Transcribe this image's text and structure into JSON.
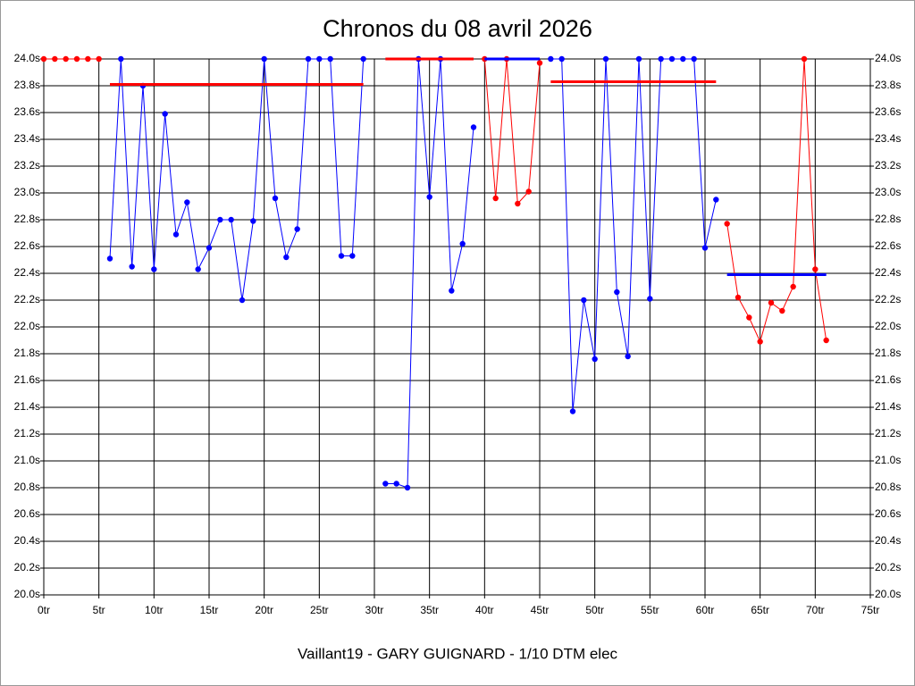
{
  "chart_data": {
    "type": "line",
    "title": "Chronos du 08 avril 2026",
    "x_label": "Vaillant19 - GARY GUIGNARD - 1/10 DTM elec",
    "xlim": [
      0,
      75
    ],
    "ylim": [
      20.0,
      24.0
    ],
    "grid": true,
    "xticks": [
      {
        "value": 0,
        "label": "0tr"
      },
      {
        "value": 5,
        "label": "5tr"
      },
      {
        "value": 10,
        "label": "10tr"
      },
      {
        "value": 15,
        "label": "15tr"
      },
      {
        "value": 20,
        "label": "20tr"
      },
      {
        "value": 25,
        "label": "25tr"
      },
      {
        "value": 30,
        "label": "30tr"
      },
      {
        "value": 35,
        "label": "35tr"
      },
      {
        "value": 40,
        "label": "40tr"
      },
      {
        "value": 45,
        "label": "45tr"
      },
      {
        "value": 50,
        "label": "50tr"
      },
      {
        "value": 55,
        "label": "55tr"
      },
      {
        "value": 60,
        "label": "60tr"
      },
      {
        "value": 65,
        "label": "65tr"
      },
      {
        "value": 70,
        "label": "70tr"
      },
      {
        "value": 75,
        "label": "75tr"
      }
    ],
    "yticks": [
      {
        "value": 20.0,
        "label": "20.0s"
      },
      {
        "value": 20.2,
        "label": "20.2s"
      },
      {
        "value": 20.4,
        "label": "20.4s"
      },
      {
        "value": 20.6,
        "label": "20.6s"
      },
      {
        "value": 20.8,
        "label": "20.8s"
      },
      {
        "value": 21.0,
        "label": "21.0s"
      },
      {
        "value": 21.2,
        "label": "21.2s"
      },
      {
        "value": 21.4,
        "label": "21.4s"
      },
      {
        "value": 21.6,
        "label": "21.6s"
      },
      {
        "value": 21.8,
        "label": "21.8s"
      },
      {
        "value": 22.0,
        "label": "22.0s"
      },
      {
        "value": 22.2,
        "label": "22.2s"
      },
      {
        "value": 22.4,
        "label": "22.4s"
      },
      {
        "value": 22.6,
        "label": "22.6s"
      },
      {
        "value": 22.8,
        "label": "22.8s"
      },
      {
        "value": 23.0,
        "label": "23.0s"
      },
      {
        "value": 23.2,
        "label": "23.2s"
      },
      {
        "value": 23.4,
        "label": "23.4s"
      },
      {
        "value": 23.6,
        "label": "23.6s"
      },
      {
        "value": 23.8,
        "label": "23.8s"
      },
      {
        "value": 24.0,
        "label": "24.0s"
      }
    ],
    "series": [
      {
        "color": "#ff0000",
        "markers": true,
        "x": [
          0,
          1,
          2,
          3,
          4,
          5
        ],
        "values": [
          24.0,
          24.0,
          24.0,
          24.0,
          24.0,
          24.0
        ]
      },
      {
        "color": "#0000ff",
        "markers": true,
        "x": [
          6,
          7,
          8,
          9,
          10,
          11,
          12,
          13,
          14,
          15,
          16,
          17,
          18,
          19,
          20,
          21,
          22,
          23,
          24,
          25,
          26,
          27,
          28,
          29
        ],
        "values": [
          22.51,
          24.0,
          22.45,
          23.8,
          22.43,
          23.59,
          22.69,
          22.93,
          22.43,
          22.59,
          22.8,
          22.8,
          22.2,
          22.79,
          24.0,
          22.96,
          22.52,
          22.73,
          24.0,
          24.0,
          24.0,
          22.53,
          22.53,
          24.0
        ]
      },
      {
        "color": "#0000ff",
        "markers": true,
        "x": [
          31,
          32,
          33,
          34,
          35,
          36,
          37,
          38,
          39
        ],
        "values": [
          20.83,
          20.83,
          20.8,
          24.0,
          22.97,
          24.0,
          22.27,
          22.62,
          23.49
        ]
      },
      {
        "color": "#ff0000",
        "markers": true,
        "x": [
          40,
          41,
          42,
          43,
          44,
          45
        ],
        "values": [
          24.0,
          22.96,
          24.0,
          22.92,
          23.01,
          23.97
        ]
      },
      {
        "color": "#0000ff",
        "markers": true,
        "x": [
          46,
          47,
          48,
          49,
          50,
          51,
          52,
          53,
          54,
          55,
          56,
          57,
          58,
          59,
          60,
          61
        ],
        "values": [
          24.0,
          24.0,
          21.37,
          22.2,
          21.76,
          24.0,
          22.26,
          21.78,
          24.0,
          22.21,
          24.0,
          24.0,
          24.0,
          24.0,
          22.59,
          22.95
        ]
      },
      {
        "color": "#ff0000",
        "markers": true,
        "x": [
          62,
          63,
          64,
          65,
          66,
          67,
          68,
          69,
          70,
          71
        ],
        "values": [
          22.77,
          22.22,
          22.07,
          21.89,
          22.18,
          22.12,
          22.3,
          24.0,
          22.43,
          21.9
        ]
      },
      {
        "color": "#ff0000",
        "markers": false,
        "x": [
          6,
          29
        ],
        "values": [
          23.81,
          23.81
        ]
      },
      {
        "color": "#ff0000",
        "markers": false,
        "x": [
          31,
          39
        ],
        "values": [
          24.0,
          24.0
        ]
      },
      {
        "color": "#0000ff",
        "markers": false,
        "x": [
          40,
          45
        ],
        "values": [
          24.0,
          24.0
        ]
      },
      {
        "color": "#ff0000",
        "markers": false,
        "x": [
          46,
          61
        ],
        "values": [
          23.83,
          23.83
        ]
      },
      {
        "color": "#0000ff",
        "markers": false,
        "x": [
          62,
          71
        ],
        "values": [
          22.39,
          22.39
        ]
      }
    ]
  }
}
